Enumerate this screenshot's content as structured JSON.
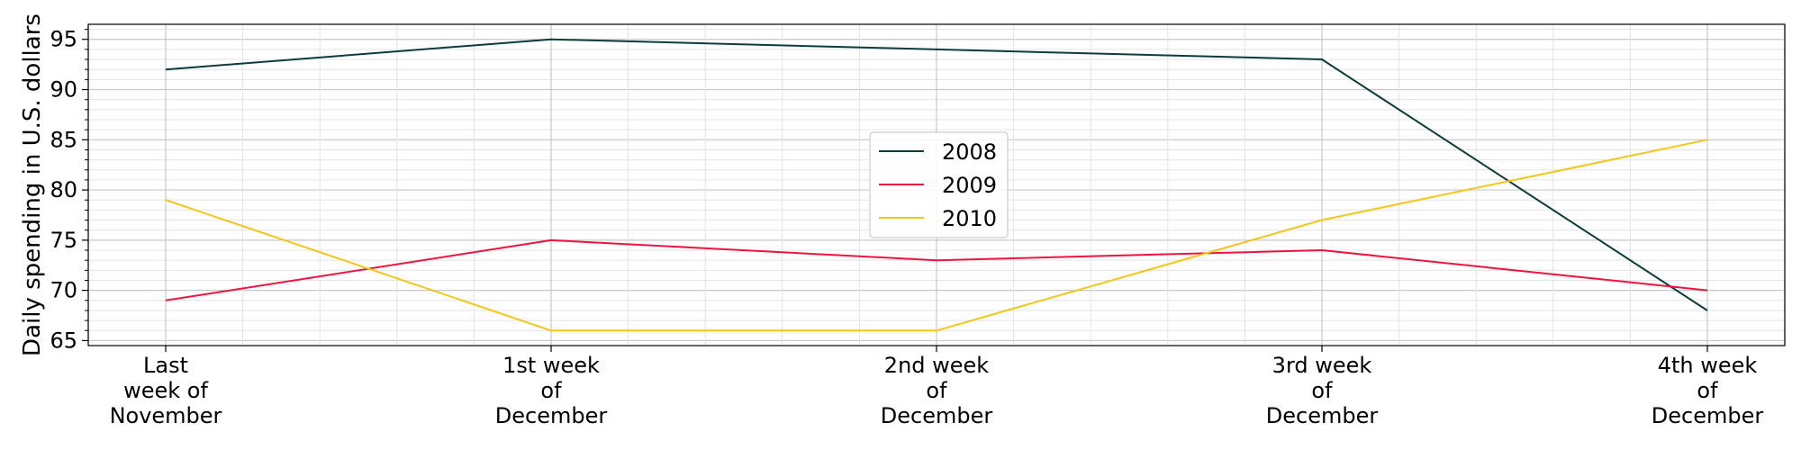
{
  "chart_data": {
    "type": "line",
    "title": "",
    "xlabel": "",
    "ylabel": "Daily spending in U.S. dollars",
    "categories": [
      [
        "Last",
        "week of",
        "November"
      ],
      [
        "1st week",
        "of",
        "December"
      ],
      [
        "2nd week",
        "of",
        "December"
      ],
      [
        "3rd week",
        "of",
        "December"
      ],
      [
        "4th week",
        "of",
        "December"
      ]
    ],
    "yticks": [
      65,
      70,
      75,
      80,
      85,
      90,
      95
    ],
    "ylim": [
      64.5,
      96.5
    ],
    "grid": true,
    "legend_position": "center",
    "series": [
      {
        "name": "2008",
        "color": "#0b3d3a",
        "values": [
          92,
          95,
          94,
          93,
          68
        ]
      },
      {
        "name": "2009",
        "color": "#f0133f",
        "values": [
          69,
          75,
          73,
          74,
          70
        ]
      },
      {
        "name": "2010",
        "color": "#f5c518",
        "values": [
          79,
          66,
          66,
          77,
          85
        ]
      }
    ]
  }
}
